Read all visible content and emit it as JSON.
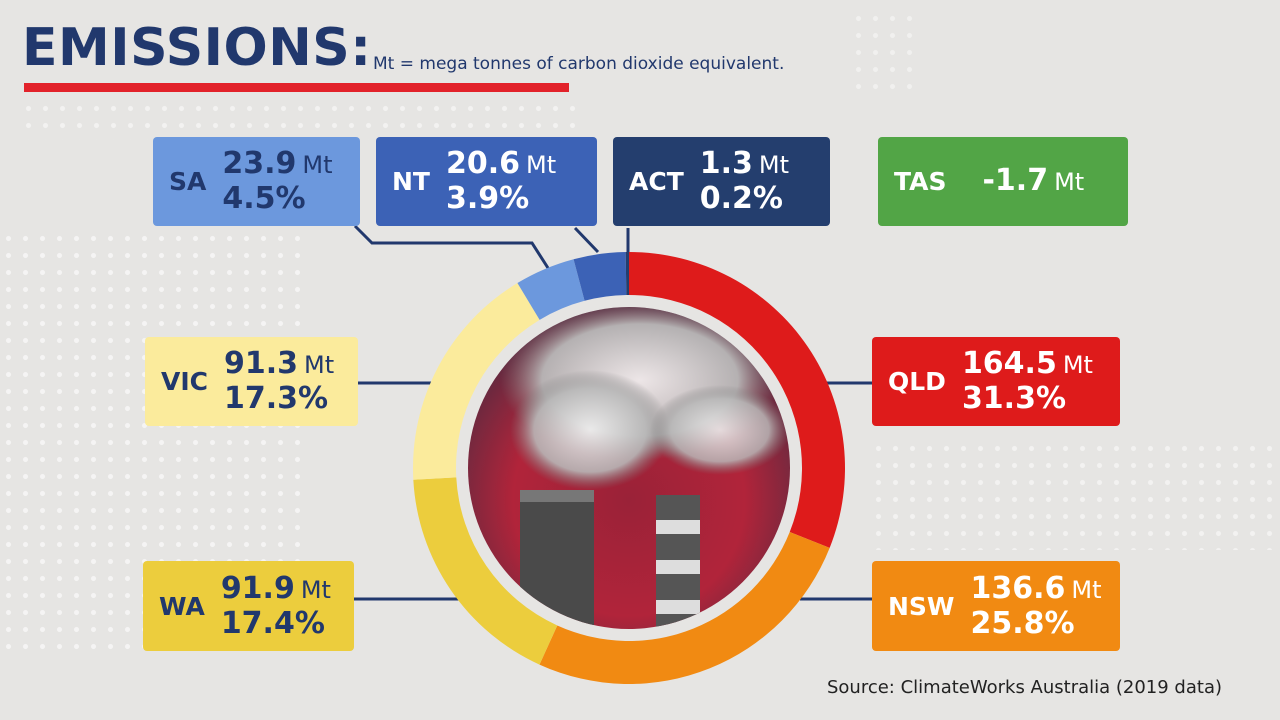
{
  "header": {
    "title": "EMISSIONS:",
    "subtitle": "Mt = mega tonnes of carbon dioxide equivalent."
  },
  "source": "Source: ClimateWorks Australia (2019 data)",
  "unit": "Mt",
  "colors": {
    "QLD": "#de1b1b",
    "NSW": "#f18a12",
    "WA": "#eccd3d",
    "VIC": "#fbeb9c",
    "SA": "#6c98dd",
    "NT": "#3c62b6",
    "ACT": "#243e6e",
    "TAS": "#52a546",
    "navy": "#21386d",
    "red_bar": "#e2222a"
  },
  "labels": {
    "SA": {
      "state": "SA",
      "mt": "23.9",
      "pct": "4.5%"
    },
    "NT": {
      "state": "NT",
      "mt": "20.6",
      "pct": "3.9%"
    },
    "ACT": {
      "state": "ACT",
      "mt": "1.3",
      "pct": "0.2%"
    },
    "TAS": {
      "state": "TAS",
      "mt": "-1.7",
      "pct": ""
    },
    "VIC": {
      "state": "VIC",
      "mt": "91.3",
      "pct": "17.3%"
    },
    "WA": {
      "state": "WA",
      "mt": "91.9",
      "pct": "17.4%"
    },
    "QLD": {
      "state": "QLD",
      "mt": "164.5",
      "pct": "31.3%"
    },
    "NSW": {
      "state": "NSW",
      "mt": "136.6",
      "pct": "25.8%"
    }
  },
  "chart_data": {
    "type": "pie",
    "title": "EMISSIONS:",
    "subtitle": "Mt = mega tonnes of carbon dioxide equivalent.",
    "categories": [
      "QLD",
      "NSW",
      "WA",
      "VIC",
      "SA",
      "NT",
      "ACT",
      "TAS"
    ],
    "values": [
      164.5,
      136.6,
      91.9,
      91.3,
      23.9,
      20.6,
      1.3,
      -1.7
    ],
    "percentages": [
      31.3,
      25.8,
      17.4,
      17.3,
      4.5,
      3.9,
      0.2,
      null
    ],
    "unit": "Mt",
    "style": "donut"
  }
}
